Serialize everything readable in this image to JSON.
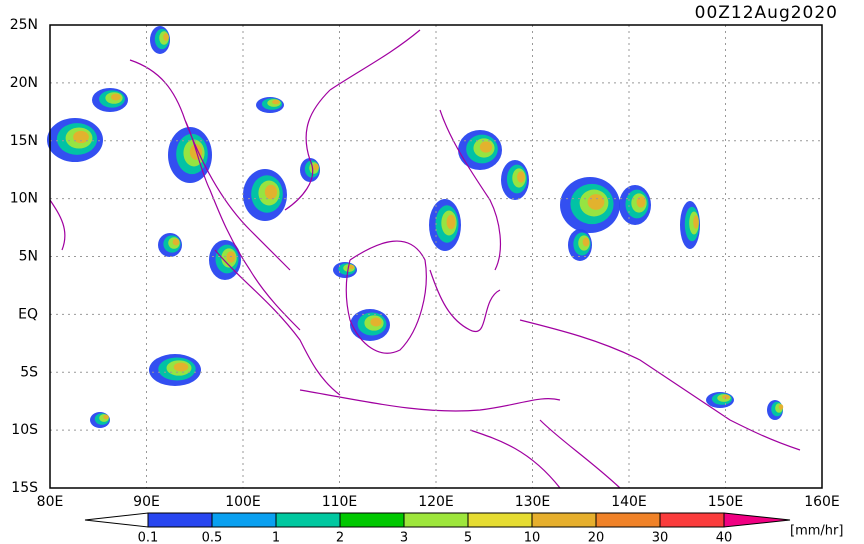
{
  "title": "00Z12Aug2020",
  "map": {
    "lon_labels": [
      "80E",
      "90E",
      "100E",
      "110E",
      "120E",
      "130E",
      "140E",
      "150E",
      "160E"
    ],
    "lat_labels": [
      "25N",
      "20N",
      "15N",
      "10N",
      "5N",
      "EQ",
      "5S",
      "10S",
      "15S"
    ]
  },
  "colorbar": {
    "levels": [
      0.1,
      0.5,
      1,
      2,
      3,
      5,
      10,
      20,
      30,
      40
    ],
    "colors": [
      "#ffffff",
      "#2846f0",
      "#0aa0f0",
      "#00c8a0",
      "#00c800",
      "#9ee63c",
      "#e6dc32",
      "#e6af2d",
      "#f08228",
      "#fa3c3c",
      "#f00082"
    ],
    "unit": "[mm/hr]"
  }
}
